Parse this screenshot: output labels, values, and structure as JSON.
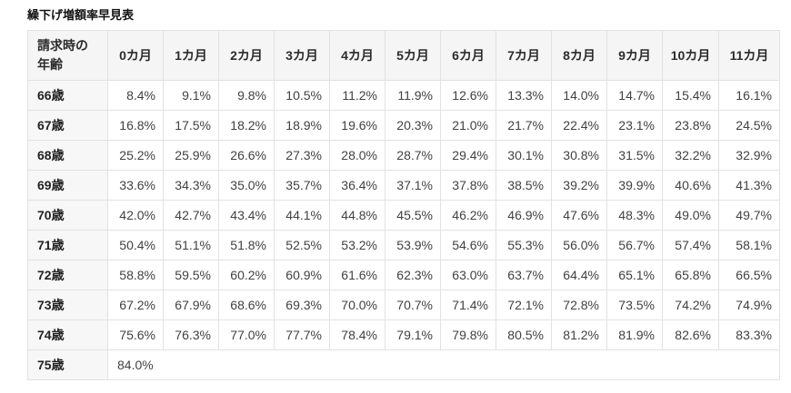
{
  "page": {
    "title": "繰下げ増額率早見表"
  },
  "table": {
    "corner_header_lines": [
      "請求時の",
      "年齢"
    ],
    "month_columns": [
      "0カ月",
      "1カ月",
      "2カ月",
      "3カ月",
      "4カ月",
      "5カ月",
      "6カ月",
      "7カ月",
      "8カ月",
      "9カ月",
      "10カ月",
      "11カ月"
    ],
    "rows": [
      {
        "age": "66歳",
        "values": [
          "8.4%",
          "9.1%",
          "9.8%",
          "10.5%",
          "11.2%",
          "11.9%",
          "12.6%",
          "13.3%",
          "14.0%",
          "14.7%",
          "15.4%",
          "16.1%"
        ]
      },
      {
        "age": "67歳",
        "values": [
          "16.8%",
          "17.5%",
          "18.2%",
          "18.9%",
          "19.6%",
          "20.3%",
          "21.0%",
          "21.7%",
          "22.4%",
          "23.1%",
          "23.8%",
          "24.5%"
        ]
      },
      {
        "age": "68歳",
        "values": [
          "25.2%",
          "25.9%",
          "26.6%",
          "27.3%",
          "28.0%",
          "28.7%",
          "29.4%",
          "30.1%",
          "30.8%",
          "31.5%",
          "32.2%",
          "32.9%"
        ]
      },
      {
        "age": "69歳",
        "values": [
          "33.6%",
          "34.3%",
          "35.0%",
          "35.7%",
          "36.4%",
          "37.1%",
          "37.8%",
          "38.5%",
          "39.2%",
          "39.9%",
          "40.6%",
          "41.3%"
        ]
      },
      {
        "age": "70歳",
        "values": [
          "42.0%",
          "42.7%",
          "43.4%",
          "44.1%",
          "44.8%",
          "45.5%",
          "46.2%",
          "46.9%",
          "47.6%",
          "48.3%",
          "49.0%",
          "49.7%"
        ]
      },
      {
        "age": "71歳",
        "values": [
          "50.4%",
          "51.1%",
          "51.8%",
          "52.5%",
          "53.2%",
          "53.9%",
          "54.6%",
          "55.3%",
          "56.0%",
          "56.7%",
          "57.4%",
          "58.1%"
        ]
      },
      {
        "age": "72歳",
        "values": [
          "58.8%",
          "59.5%",
          "60.2%",
          "60.9%",
          "61.6%",
          "62.3%",
          "63.0%",
          "63.7%",
          "64.4%",
          "65.1%",
          "65.8%",
          "66.5%"
        ]
      },
      {
        "age": "73歳",
        "values": [
          "67.2%",
          "67.9%",
          "68.6%",
          "69.3%",
          "70.0%",
          "70.7%",
          "71.4%",
          "72.1%",
          "72.8%",
          "73.5%",
          "74.2%",
          "74.9%"
        ]
      },
      {
        "age": "74歳",
        "values": [
          "75.6%",
          "76.3%",
          "77.0%",
          "77.7%",
          "78.4%",
          "79.1%",
          "79.8%",
          "80.5%",
          "81.2%",
          "81.9%",
          "82.6%",
          "83.3%"
        ]
      },
      {
        "age": "75歳",
        "values": [
          "84.0%"
        ]
      }
    ]
  },
  "colors": {
    "header_bg": "#f5f5f5",
    "age_column_bg": "#f7f7f7",
    "border": "#e2e2e2",
    "value_text": "#414141",
    "header_text": "#2b2b2b"
  },
  "chart_data": {
    "type": "table",
    "title": "繰下げ増額率早見表",
    "row_header_label": "請求時の年齢",
    "columns": [
      "0カ月",
      "1カ月",
      "2カ月",
      "3カ月",
      "4カ月",
      "5カ月",
      "6カ月",
      "7カ月",
      "8カ月",
      "9カ月",
      "10カ月",
      "11カ月"
    ],
    "rows": [
      "66歳",
      "67歳",
      "68歳",
      "69歳",
      "70歳",
      "71歳",
      "72歳",
      "73歳",
      "74歳",
      "75歳"
    ],
    "values_percent": [
      [
        8.4,
        9.1,
        9.8,
        10.5,
        11.2,
        11.9,
        12.6,
        13.3,
        14.0,
        14.7,
        15.4,
        16.1
      ],
      [
        16.8,
        17.5,
        18.2,
        18.9,
        19.6,
        20.3,
        21.0,
        21.7,
        22.4,
        23.1,
        23.8,
        24.5
      ],
      [
        25.2,
        25.9,
        26.6,
        27.3,
        28.0,
        28.7,
        29.4,
        30.1,
        30.8,
        31.5,
        32.2,
        32.9
      ],
      [
        33.6,
        34.3,
        35.0,
        35.7,
        36.4,
        37.1,
        37.8,
        38.5,
        39.2,
        39.9,
        40.6,
        41.3
      ],
      [
        42.0,
        42.7,
        43.4,
        44.1,
        44.8,
        45.5,
        46.2,
        46.9,
        47.6,
        48.3,
        49.0,
        49.7
      ],
      [
        50.4,
        51.1,
        51.8,
        52.5,
        53.2,
        53.9,
        54.6,
        55.3,
        56.0,
        56.7,
        57.4,
        58.1
      ],
      [
        58.8,
        59.5,
        60.2,
        60.9,
        61.6,
        62.3,
        63.0,
        63.7,
        64.4,
        65.1,
        65.8,
        66.5
      ],
      [
        67.2,
        67.9,
        68.6,
        69.3,
        70.0,
        70.7,
        71.4,
        72.1,
        72.8,
        73.5,
        74.2,
        74.9
      ],
      [
        75.6,
        76.3,
        77.0,
        77.7,
        78.4,
        79.1,
        79.8,
        80.5,
        81.2,
        81.9,
        82.6,
        83.3
      ],
      [
        84.0
      ]
    ]
  }
}
